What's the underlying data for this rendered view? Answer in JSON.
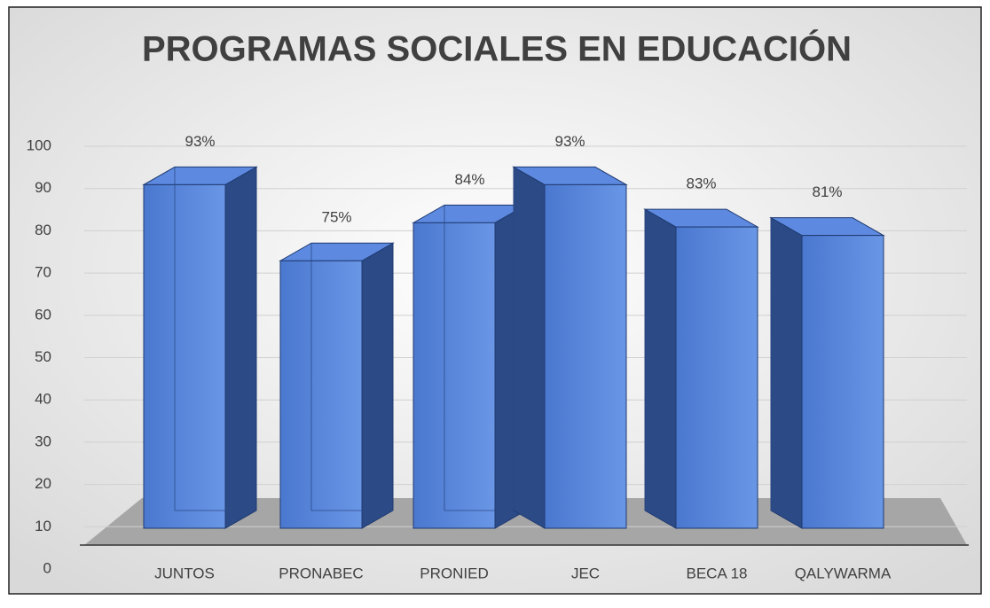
{
  "chart_data": {
    "type": "bar3d",
    "title": "PROGRAMAS SOCIALES EN EDUCACIÓN",
    "categories": [
      "JUNTOS",
      "PRONABEC",
      "PRONIED",
      "JEC",
      "BECA 18",
      "QALYWARMA"
    ],
    "values": [
      93,
      75,
      84,
      93,
      83,
      81
    ],
    "value_labels": [
      "93%",
      "75%",
      "84%",
      "93%",
      "83%",
      "81%"
    ],
    "color": "#4f7fd6",
    "ylim": [
      0,
      100
    ],
    "yticks": [
      0,
      10,
      20,
      30,
      40,
      50,
      60,
      70,
      80,
      90,
      100
    ],
    "grid": true
  }
}
